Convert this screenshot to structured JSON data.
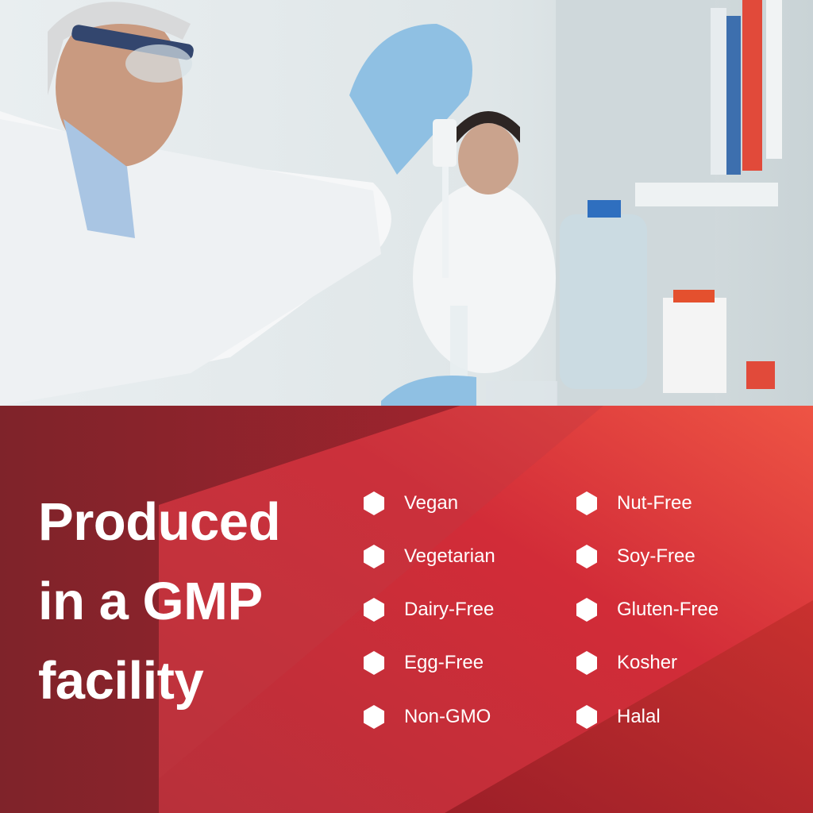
{
  "headline": {
    "line1": "Produced",
    "line2": "in a GMP",
    "line3": "facility"
  },
  "attributes": {
    "left": [
      {
        "label": "Vegan",
        "icon": "hexagon-icon"
      },
      {
        "label": "Vegetarian",
        "icon": "hexagon-icon"
      },
      {
        "label": "Dairy-Free",
        "icon": "hexagon-icon"
      },
      {
        "label": "Egg-Free",
        "icon": "hexagon-icon"
      },
      {
        "label": "Non-GMO",
        "icon": "hexagon-icon"
      }
    ],
    "right": [
      {
        "label": "Nut-Free",
        "icon": "hexagon-icon"
      },
      {
        "label": "Soy-Free",
        "icon": "hexagon-icon"
      },
      {
        "label": "Gluten-Free",
        "icon": "hexagon-icon"
      },
      {
        "label": "Kosher",
        "icon": "hexagon-icon"
      },
      {
        "label": "Halal",
        "icon": "hexagon-icon"
      }
    ]
  },
  "colors": {
    "panel_dark": "#7f232a",
    "panel_mid": "#b8303a",
    "panel_bright": "#e0413f",
    "text": "#ffffff"
  }
}
